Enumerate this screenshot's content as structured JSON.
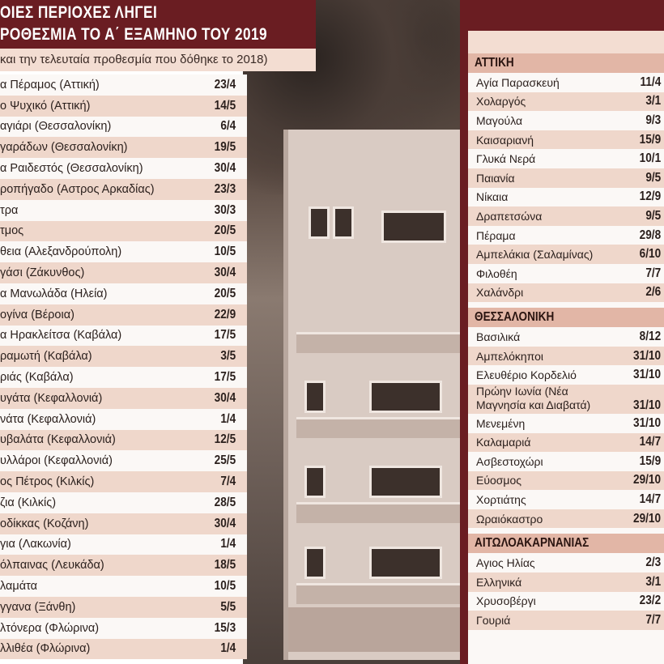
{
  "title": {
    "line1": "ΟΙΕΣ ΠΕΡΙΟΧΕΣ ΛΗΓΕΙ",
    "line2": "ΡΟΘΕΣΜΙΑ ΤΟ Α΄ ΕΞΑΜΗΝΟ ΤΟΥ 2019",
    "subtitle": "και την τελευταία προθεσμία που δόθηκε το 2018)"
  },
  "colors": {
    "maroon": "#6a1d22",
    "row_pink": "#efd7cb",
    "header_pink": "#e2b6a6"
  },
  "left_rows": [
    {
      "area": "α Πέραμος (Αττική)",
      "date": "23/4"
    },
    {
      "area": "ο Ψυχικό (Αττική)",
      "date": "14/5"
    },
    {
      "area": "αγιάρι (Θεσσαλονίκη)",
      "date": "6/4"
    },
    {
      "area": "γαράδων (Θεσσαλονίκη)",
      "date": "19/5"
    },
    {
      "area": "α Ραιδεστός (Θεσσαλονίκη)",
      "date": "30/4"
    },
    {
      "area": "ροπήγαδο (Αστρος Αρκαδίας)",
      "date": "23/3"
    },
    {
      "area": "τρα",
      "date": "30/3"
    },
    {
      "area": "τμος",
      "date": "20/5"
    },
    {
      "area": "θεια (Αλεξανδρούπολη)",
      "date": "10/5"
    },
    {
      "area": "γάσι (Ζάκυνθος)",
      "date": "30/4"
    },
    {
      "area": "α Μανωλάδα (Ηλεία)",
      "date": "20/5"
    },
    {
      "area": "ογίνα (Βέροια)",
      "date": "22/9"
    },
    {
      "area": "α Ηρακλείτσα (Καβάλα)",
      "date": "17/5"
    },
    {
      "area": "ραμωτή (Καβάλα)",
      "date": "3/5"
    },
    {
      "area": "ριάς (Καβάλα)",
      "date": "17/5"
    },
    {
      "area": "υγάτα (Κεφαλλονιά)",
      "date": "30/4"
    },
    {
      "area": "νάτα (Κεφαλλονιά)",
      "date": "1/4"
    },
    {
      "area": "υβαλάτα (Κεφαλλονιά)",
      "date": "12/5"
    },
    {
      "area": "υλλάροι (Κεφαλλονιά)",
      "date": "25/5"
    },
    {
      "area": "ος Πέτρος (Κιλκίς)",
      "date": "7/4"
    },
    {
      "area": "ζια (Κιλκίς)",
      "date": "28/5"
    },
    {
      "area": "οδίκκας (Κοζάνη)",
      "date": "30/4"
    },
    {
      "area": "για (Λακωνία)",
      "date": "1/4"
    },
    {
      "area": "όλπαινας (Λευκάδα)",
      "date": "18/5"
    },
    {
      "area": "λαμάτα",
      "date": "10/5"
    },
    {
      "area": "γγανα (Ξάνθη)",
      "date": "5/5"
    },
    {
      "area": "λτόνερα (Φλώρινα)",
      "date": "15/3"
    },
    {
      "area": "λλιθέα (Φλώρινα)",
      "date": "1/4"
    }
  ],
  "sections": [
    {
      "name": "ΑΤΤΙΚΗ",
      "rows": [
        {
          "area": "Αγία Παρασκευή",
          "date": "11/4"
        },
        {
          "area": "Χολαργός",
          "date": "3/1"
        },
        {
          "area": "Μαγούλα",
          "date": "9/3"
        },
        {
          "area": "Καισαριανή",
          "date": "15/9"
        },
        {
          "area": "Γλυκά Νερά",
          "date": "10/1"
        },
        {
          "area": "Παιανία",
          "date": "9/5"
        },
        {
          "area": "Νίκαια",
          "date": "12/9"
        },
        {
          "area": "Δραπετσώνα",
          "date": "9/5"
        },
        {
          "area": "Πέραμα",
          "date": "29/8"
        },
        {
          "area": "Αμπελάκια (Σαλαμίνας)",
          "date": "6/10"
        },
        {
          "area": "Φιλοθέη",
          "date": "7/7"
        },
        {
          "area": "Χαλάνδρι",
          "date": "2/6"
        }
      ]
    },
    {
      "name": "ΘΕΣΣΑΛΟΝΙΚΗ",
      "rows": [
        {
          "area": "Βασιλικά",
          "date": "8/12"
        },
        {
          "area": "Αμπελόκηποι",
          "date": "31/10"
        },
        {
          "area": "Ελευθέριο Κορδελιό",
          "date": "31/10"
        },
        {
          "area": "Πρώην Ιωνία (Νέα Μαγνησία και Διαβατά)",
          "date": "31/10"
        },
        {
          "area": "Μενεμένη",
          "date": "31/10"
        },
        {
          "area": "Καλαμαριά",
          "date": "14/7"
        },
        {
          "area": "Ασβεστοχώρι",
          "date": "15/9"
        },
        {
          "area": "Εύοσμος",
          "date": "29/10"
        },
        {
          "area": "Χορτιάτης",
          "date": "14/7"
        },
        {
          "area": "Ωραιόκαστρο",
          "date": "29/10"
        }
      ]
    },
    {
      "name": "ΑΙΤΩΛΟΑΚΑΡΝΑΝΙΑΣ",
      "rows": [
        {
          "area": "Αγιος Ηλίας",
          "date": "2/3"
        },
        {
          "area": "Ελληνικά",
          "date": "3/1"
        },
        {
          "area": "Χρυσοβέργι",
          "date": "23/2"
        },
        {
          "area": "Γουριά",
          "date": "7/7"
        }
      ]
    }
  ]
}
